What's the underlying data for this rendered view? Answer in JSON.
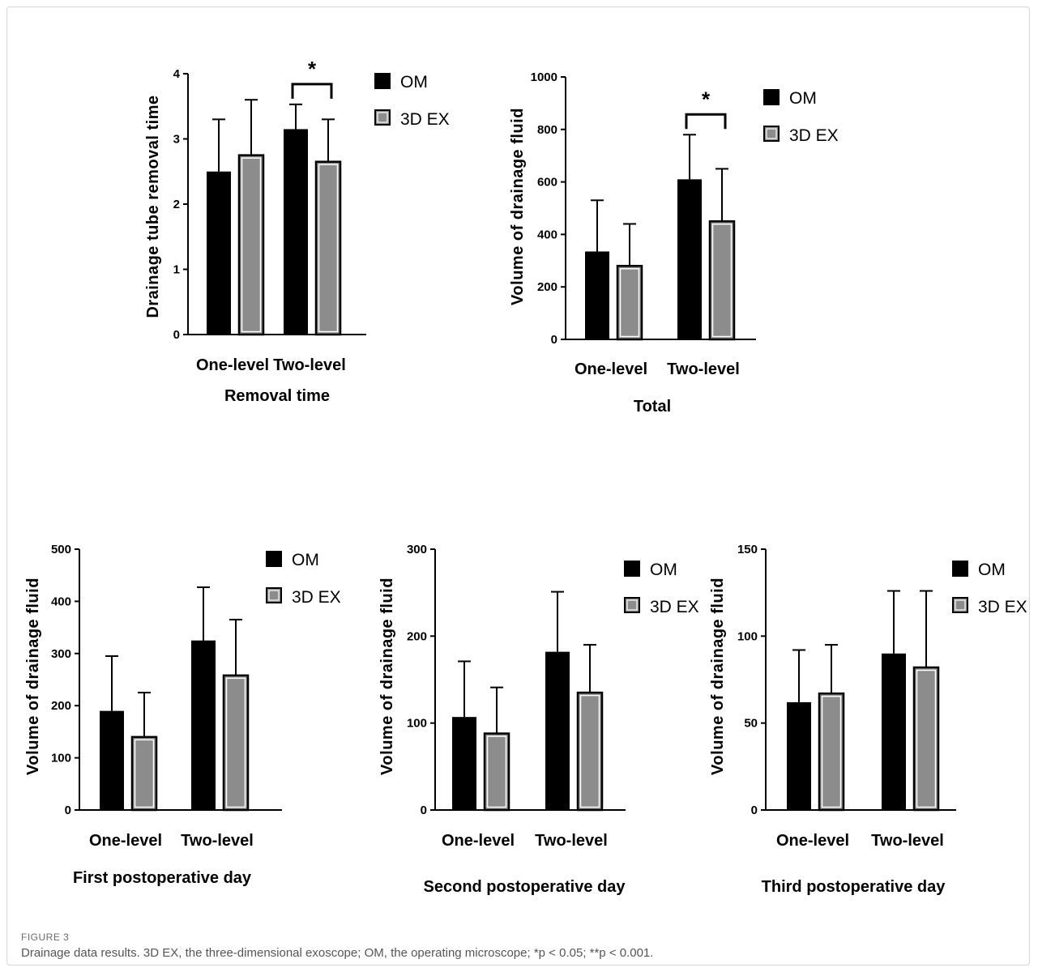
{
  "legend": {
    "om": "OM",
    "ex": "3D EX"
  },
  "colors": {
    "om": "#000000",
    "ex_fill": "#8c8c8c",
    "ex_edge": "#000000",
    "ex_inner": "#ffffff"
  },
  "caption": {
    "label": "FIGURE 3",
    "text": "Drainage data results. 3D EX, the three-dimensional exoscope; OM, the operating microscope; *p < 0.05; **p < 0.001."
  },
  "chart_data": [
    {
      "type": "bar",
      "title": "",
      "xlabel": "Removal time",
      "ylabel": "Drainage tube removal time",
      "categories": [
        "One-level",
        "Two-level"
      ],
      "ylim": [
        0,
        4
      ],
      "yticks": [
        0,
        1,
        2,
        3,
        4
      ],
      "series": [
        {
          "name": "OM",
          "values": [
            2.5,
            3.15
          ],
          "errors": [
            0.8,
            0.38
          ]
        },
        {
          "name": "3D EX",
          "values": [
            2.75,
            2.65
          ],
          "errors": [
            0.85,
            0.65
          ]
        }
      ],
      "significance": [
        {
          "category": "Two-level",
          "label": "*"
        }
      ],
      "legend_position": "top-right"
    },
    {
      "type": "bar",
      "title": "",
      "xlabel": "Total",
      "ylabel": "Volume of drainage fluid",
      "categories": [
        "One-level",
        "Two-level"
      ],
      "ylim": [
        0,
        1000
      ],
      "yticks": [
        0,
        200,
        400,
        600,
        800,
        1000
      ],
      "series": [
        {
          "name": "OM",
          "values": [
            335,
            610
          ],
          "errors": [
            195,
            170
          ]
        },
        {
          "name": "3D EX",
          "values": [
            280,
            450
          ],
          "errors": [
            160,
            200
          ]
        }
      ],
      "significance": [
        {
          "category": "Two-level",
          "label": "*"
        }
      ],
      "legend_position": "top-right"
    },
    {
      "type": "bar",
      "title": "",
      "xlabel": "First postoperative day",
      "ylabel": "Volume of drainage fluid",
      "categories": [
        "One-level",
        "Two-level"
      ],
      "ylim": [
        0,
        500
      ],
      "yticks": [
        0,
        100,
        200,
        300,
        400,
        500
      ],
      "series": [
        {
          "name": "OM",
          "values": [
            190,
            325
          ],
          "errors": [
            105,
            102
          ]
        },
        {
          "name": "3D EX",
          "values": [
            140,
            258
          ],
          "errors": [
            85,
            107
          ]
        }
      ],
      "significance": [],
      "legend_position": "top-right"
    },
    {
      "type": "bar",
      "title": "",
      "xlabel": "Second postoperative day",
      "ylabel": "Volume of drainage fluid",
      "categories": [
        "One-level",
        "Two-level"
      ],
      "ylim": [
        0,
        300
      ],
      "yticks": [
        0,
        100,
        200,
        300
      ],
      "series": [
        {
          "name": "OM",
          "values": [
            107,
            182
          ],
          "errors": [
            64,
            69
          ]
        },
        {
          "name": "3D EX",
          "values": [
            88,
            135
          ],
          "errors": [
            53,
            55
          ]
        }
      ],
      "significance": [],
      "legend_position": "top-right"
    },
    {
      "type": "bar",
      "title": "",
      "xlabel": "Third postoperative day",
      "ylabel": "Volume of drainage fluid",
      "categories": [
        "One-level",
        "Two-level"
      ],
      "ylim": [
        0,
        150
      ],
      "yticks": [
        0,
        50,
        100,
        150
      ],
      "series": [
        {
          "name": "OM",
          "values": [
            62,
            90
          ],
          "errors": [
            30,
            36
          ]
        },
        {
          "name": "3D EX",
          "values": [
            67,
            82
          ],
          "errors": [
            28,
            44
          ]
        }
      ],
      "significance": [],
      "legend_position": "top-right"
    }
  ]
}
